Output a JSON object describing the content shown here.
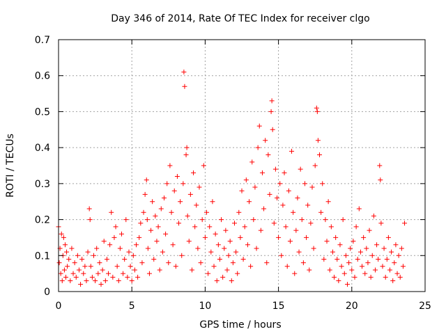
{
  "chart_data": {
    "type": "scatter",
    "title": "Day 346 of 2014, Rate Of TEC Index for receiver clgo",
    "xlabel": "GPS time / hours",
    "ylabel": "ROTI / TECUs",
    "xlim": [
      0,
      25
    ],
    "ylim": [
      0,
      0.7
    ],
    "xticks": [
      0,
      5,
      10,
      15,
      20,
      25
    ],
    "yticks": [
      0,
      0.1,
      0.2,
      0.3,
      0.4,
      0.5,
      0.6,
      0.7
    ],
    "xtick_labels": [
      "0",
      "5",
      "10",
      "15",
      "20",
      "25"
    ],
    "ytick_labels": [
      "0",
      "0.1",
      "0.2",
      "0.3",
      "0.4",
      "0.5",
      "0.6",
      "0.7"
    ],
    "grid": true,
    "marker": "+",
    "colors": {
      "series": "#ff0000",
      "grid": "#a0a0a0",
      "axis": "#000000"
    },
    "series": [
      {
        "name": "ROTI",
        "points": [
          [
            0.0,
            0.18
          ],
          [
            0.05,
            0.08
          ],
          [
            0.1,
            0.12
          ],
          [
            0.15,
            0.05
          ],
          [
            0.2,
            0.16
          ],
          [
            0.25,
            0.03
          ],
          [
            0.3,
            0.1
          ],
          [
            0.35,
            0.15
          ],
          [
            0.4,
            0.06
          ],
          [
            0.45,
            0.13
          ],
          [
            0.5,
            0.04
          ],
          [
            0.55,
            0.11
          ],
          [
            0.6,
            0.07
          ],
          [
            0.7,
            0.09
          ],
          [
            0.8,
            0.03
          ],
          [
            0.9,
            0.12
          ],
          [
            1.0,
            0.05
          ],
          [
            1.1,
            0.08
          ],
          [
            1.2,
            0.04
          ],
          [
            1.3,
            0.1
          ],
          [
            1.4,
            0.06
          ],
          [
            1.5,
            0.02
          ],
          [
            1.6,
            0.09
          ],
          [
            1.7,
            0.05
          ],
          [
            1.8,
            0.07
          ],
          [
            1.9,
            0.03
          ],
          [
            2.0,
            0.11
          ],
          [
            2.1,
            0.23
          ],
          [
            2.15,
            0.2
          ],
          [
            2.2,
            0.07
          ],
          [
            2.3,
            0.04
          ],
          [
            2.4,
            0.1
          ],
          [
            2.5,
            0.03
          ],
          [
            2.6,
            0.12
          ],
          [
            2.7,
            0.05
          ],
          [
            2.8,
            0.08
          ],
          [
            2.9,
            0.02
          ],
          [
            3.0,
            0.06
          ],
          [
            3.1,
            0.14
          ],
          [
            3.2,
            0.03
          ],
          [
            3.3,
            0.09
          ],
          [
            3.4,
            0.05
          ],
          [
            3.5,
            0.13
          ],
          [
            3.6,
            0.22
          ],
          [
            3.7,
            0.04
          ],
          [
            3.8,
            0.15
          ],
          [
            3.9,
            0.18
          ],
          [
            4.0,
            0.07
          ],
          [
            4.1,
            0.03
          ],
          [
            4.2,
            0.12
          ],
          [
            4.3,
            0.16
          ],
          [
            4.4,
            0.05
          ],
          [
            4.5,
            0.09
          ],
          [
            4.6,
            0.2
          ],
          [
            4.7,
            0.04
          ],
          [
            4.8,
            0.11
          ],
          [
            4.9,
            0.07
          ],
          [
            5.0,
            0.03
          ],
          [
            5.1,
            0.1
          ],
          [
            5.2,
            0.06
          ],
          [
            5.3,
            0.13
          ],
          [
            5.4,
            0.04
          ],
          [
            5.5,
            0.15
          ],
          [
            5.6,
            0.19
          ],
          [
            5.7,
            0.08
          ],
          [
            5.8,
            0.22
          ],
          [
            5.9,
            0.27
          ],
          [
            6.0,
            0.31
          ],
          [
            6.05,
            0.2
          ],
          [
            6.1,
            0.12
          ],
          [
            6.2,
            0.05
          ],
          [
            6.3,
            0.17
          ],
          [
            6.4,
            0.25
          ],
          [
            6.5,
            0.09
          ],
          [
            6.6,
            0.21
          ],
          [
            6.7,
            0.14
          ],
          [
            6.8,
            0.18
          ],
          [
            6.9,
            0.06
          ],
          [
            7.0,
            0.23
          ],
          [
            7.1,
            0.11
          ],
          [
            7.2,
            0.26
          ],
          [
            7.3,
            0.16
          ],
          [
            7.4,
            0.3
          ],
          [
            7.5,
            0.08
          ],
          [
            7.6,
            0.35
          ],
          [
            7.7,
            0.22
          ],
          [
            7.8,
            0.13
          ],
          [
            7.9,
            0.28
          ],
          [
            8.0,
            0.07
          ],
          [
            8.1,
            0.32
          ],
          [
            8.2,
            0.19
          ],
          [
            8.3,
            0.25
          ],
          [
            8.4,
            0.1
          ],
          [
            8.5,
            0.3
          ],
          [
            8.55,
            0.61
          ],
          [
            8.6,
            0.57
          ],
          [
            8.7,
            0.38
          ],
          [
            8.75,
            0.4
          ],
          [
            8.8,
            0.21
          ],
          [
            8.9,
            0.14
          ],
          [
            9.0,
            0.27
          ],
          [
            9.1,
            0.06
          ],
          [
            9.2,
            0.33
          ],
          [
            9.3,
            0.18
          ],
          [
            9.4,
            0.24
          ],
          [
            9.5,
            0.12
          ],
          [
            9.6,
            0.29
          ],
          [
            9.7,
            0.08
          ],
          [
            9.8,
            0.2
          ],
          [
            9.9,
            0.35
          ],
          [
            10.0,
            0.15
          ],
          [
            10.1,
            0.22
          ],
          [
            10.2,
            0.05
          ],
          [
            10.3,
            0.18
          ],
          [
            10.4,
            0.11
          ],
          [
            10.5,
            0.25
          ],
          [
            10.6,
            0.07
          ],
          [
            10.7,
            0.16
          ],
          [
            10.8,
            0.03
          ],
          [
            10.9,
            0.13
          ],
          [
            11.0,
            0.09
          ],
          [
            11.1,
            0.2
          ],
          [
            11.2,
            0.04
          ],
          [
            11.3,
            0.12
          ],
          [
            11.4,
            0.17
          ],
          [
            11.5,
            0.06
          ],
          [
            11.6,
            0.1
          ],
          [
            11.7,
            0.14
          ],
          [
            11.8,
            0.03
          ],
          [
            11.9,
            0.08
          ],
          [
            12.0,
            0.19
          ],
          [
            12.1,
            0.11
          ],
          [
            12.2,
            0.05
          ],
          [
            12.3,
            0.22
          ],
          [
            12.4,
            0.15
          ],
          [
            12.5,
            0.28
          ],
          [
            12.6,
            0.09
          ],
          [
            12.7,
            0.18
          ],
          [
            12.8,
            0.31
          ],
          [
            12.9,
            0.13
          ],
          [
            13.0,
            0.25
          ],
          [
            13.1,
            0.07
          ],
          [
            13.2,
            0.36
          ],
          [
            13.3,
            0.2
          ],
          [
            13.4,
            0.29
          ],
          [
            13.5,
            0.12
          ],
          [
            13.6,
            0.4
          ],
          [
            13.7,
            0.46
          ],
          [
            13.8,
            0.17
          ],
          [
            13.9,
            0.33
          ],
          [
            14.0,
            0.23
          ],
          [
            14.1,
            0.42
          ],
          [
            14.2,
            0.08
          ],
          [
            14.3,
            0.38
          ],
          [
            14.4,
            0.27
          ],
          [
            14.5,
            0.5
          ],
          [
            14.55,
            0.53
          ],
          [
            14.6,
            0.45
          ],
          [
            14.7,
            0.19
          ],
          [
            14.8,
            0.34
          ],
          [
            14.9,
            0.26
          ],
          [
            15.0,
            0.15
          ],
          [
            15.1,
            0.3
          ],
          [
            15.2,
            0.1
          ],
          [
            15.3,
            0.24
          ],
          [
            15.4,
            0.33
          ],
          [
            15.5,
            0.18
          ],
          [
            15.6,
            0.07
          ],
          [
            15.7,
            0.28
          ],
          [
            15.8,
            0.14
          ],
          [
            15.9,
            0.39
          ],
          [
            16.0,
            0.22
          ],
          [
            16.1,
            0.05
          ],
          [
            16.2,
            0.17
          ],
          [
            16.3,
            0.26
          ],
          [
            16.4,
            0.11
          ],
          [
            16.5,
            0.34
          ],
          [
            16.6,
            0.2
          ],
          [
            16.7,
            0.08
          ],
          [
            16.8,
            0.3
          ],
          [
            16.9,
            0.15
          ],
          [
            17.0,
            0.24
          ],
          [
            17.1,
            0.06
          ],
          [
            17.2,
            0.19
          ],
          [
            17.3,
            0.29
          ],
          [
            17.4,
            0.12
          ],
          [
            17.5,
            0.35
          ],
          [
            17.6,
            0.51
          ],
          [
            17.65,
            0.5
          ],
          [
            17.7,
            0.42
          ],
          [
            17.8,
            0.38
          ],
          [
            17.9,
            0.22
          ],
          [
            18.0,
            0.3
          ],
          [
            18.1,
            0.09
          ],
          [
            18.2,
            0.2
          ],
          [
            18.3,
            0.14
          ],
          [
            18.4,
            0.25
          ],
          [
            18.5,
            0.06
          ],
          [
            18.6,
            0.18
          ],
          [
            18.7,
            0.11
          ],
          [
            18.8,
            0.04
          ],
          [
            18.9,
            0.15
          ],
          [
            19.0,
            0.09
          ],
          [
            19.1,
            0.03
          ],
          [
            19.2,
            0.13
          ],
          [
            19.3,
            0.07
          ],
          [
            19.4,
            0.2
          ],
          [
            19.5,
            0.05
          ],
          [
            19.6,
            0.1
          ],
          [
            19.7,
            0.02
          ],
          [
            19.8,
            0.08
          ],
          [
            19.9,
            0.12
          ],
          [
            20.0,
            0.06
          ],
          [
            20.1,
            0.14
          ],
          [
            20.2,
            0.04
          ],
          [
            20.3,
            0.18
          ],
          [
            20.4,
            0.09
          ],
          [
            20.5,
            0.23
          ],
          [
            20.6,
            0.11
          ],
          [
            20.7,
            0.07
          ],
          [
            20.8,
            0.15
          ],
          [
            20.9,
            0.05
          ],
          [
            21.0,
            0.12
          ],
          [
            21.1,
            0.08
          ],
          [
            21.2,
            0.17
          ],
          [
            21.3,
            0.04
          ],
          [
            21.4,
            0.1
          ],
          [
            21.5,
            0.21
          ],
          [
            21.6,
            0.06
          ],
          [
            21.7,
            0.13
          ],
          [
            21.8,
            0.09
          ],
          [
            21.9,
            0.35
          ],
          [
            21.95,
            0.31
          ],
          [
            22.0,
            0.19
          ],
          [
            22.1,
            0.07
          ],
          [
            22.2,
            0.12
          ],
          [
            22.3,
            0.04
          ],
          [
            22.4,
            0.09
          ],
          [
            22.5,
            0.15
          ],
          [
            22.6,
            0.06
          ],
          [
            22.7,
            0.11
          ],
          [
            22.8,
            0.03
          ],
          [
            22.9,
            0.08
          ],
          [
            23.0,
            0.13
          ],
          [
            23.1,
            0.05
          ],
          [
            23.2,
            0.1
          ],
          [
            23.3,
            0.04
          ],
          [
            23.4,
            0.12
          ],
          [
            23.5,
            0.07
          ],
          [
            23.6,
            0.19
          ]
        ]
      }
    ]
  }
}
